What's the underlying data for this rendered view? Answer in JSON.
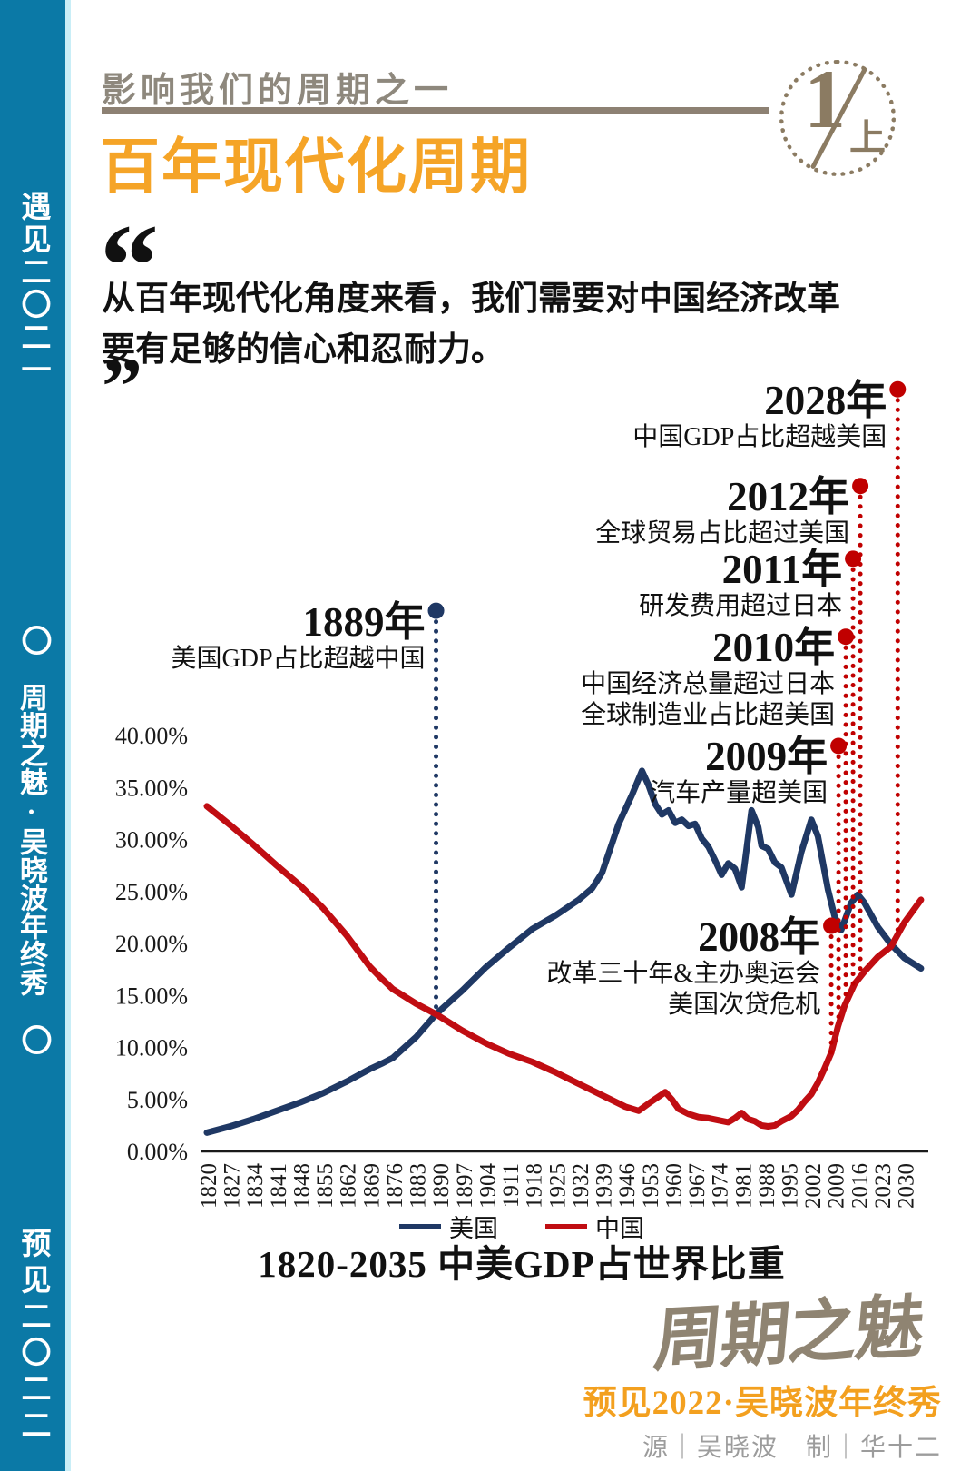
{
  "sidebar": {
    "bg_color": "#0b79a6",
    "strip_color": "#c9eef7",
    "line1": "遇见二〇二一",
    "ring1": "〇",
    "line2": "周期之魅·吴晓波年终秀",
    "ring2": "〇",
    "line3": "预见二〇二二"
  },
  "header": {
    "kicker": "影响我们的周期之一",
    "kicker_color": "#8e887d",
    "rule_color": "#8d8173",
    "title": "百年现代化周期",
    "title_color": "#f5a427",
    "badge": {
      "number": "1",
      "suffix": "上",
      "color": "#8b7b62"
    }
  },
  "quote": {
    "open_mark": "“",
    "close_mark": "”",
    "line1": "从百年现代化角度来看，我们需要对中国经济改革",
    "line2": "要有足够的信心和忍耐力。"
  },
  "chart_data": {
    "type": "line",
    "title": "1820-2035 中美GDP占世界比重",
    "xlabel": "",
    "ylabel": "",
    "xlim": [
      1820,
      2036
    ],
    "ylim": [
      0,
      40
    ],
    "grid": false,
    "legend_position": "bottom",
    "y_ticks": [
      "0.00%",
      "5.00%",
      "10.00%",
      "15.00%",
      "20.00%",
      "25.00%",
      "30.00%",
      "35.00%",
      "40.00%"
    ],
    "x_ticks": [
      1820,
      1827,
      1834,
      1841,
      1848,
      1855,
      1862,
      1869,
      1876,
      1883,
      1890,
      1897,
      1904,
      1911,
      1918,
      1925,
      1932,
      1939,
      1946,
      1953,
      1960,
      1967,
      1974,
      1981,
      1988,
      1995,
      2002,
      2009,
      2016,
      2023,
      2030
    ],
    "series": [
      {
        "name": "美国",
        "color": "#1f3864",
        "points": [
          [
            1820,
            1.8
          ],
          [
            1827,
            2.4
          ],
          [
            1834,
            3.1
          ],
          [
            1841,
            3.9
          ],
          [
            1848,
            4.7
          ],
          [
            1855,
            5.6
          ],
          [
            1862,
            6.7
          ],
          [
            1869,
            7.9
          ],
          [
            1873,
            8.5
          ],
          [
            1876,
            9.0
          ],
          [
            1883,
            11.0
          ],
          [
            1889,
            13.2
          ],
          [
            1897,
            15.5
          ],
          [
            1904,
            17.7
          ],
          [
            1911,
            19.6
          ],
          [
            1918,
            21.4
          ],
          [
            1925,
            22.7
          ],
          [
            1932,
            24.2
          ],
          [
            1936,
            25.3
          ],
          [
            1939,
            26.8
          ],
          [
            1944,
            31.5
          ],
          [
            1948,
            34.3
          ],
          [
            1951,
            36.6
          ],
          [
            1953,
            35.2
          ],
          [
            1955,
            33.4
          ],
          [
            1957,
            32.4
          ],
          [
            1959,
            32.8
          ],
          [
            1961,
            31.6
          ],
          [
            1963,
            31.9
          ],
          [
            1965,
            31.3
          ],
          [
            1967,
            31.5
          ],
          [
            1969,
            30.1
          ],
          [
            1971,
            29.3
          ],
          [
            1973,
            28.0
          ],
          [
            1975,
            26.6
          ],
          [
            1977,
            27.7
          ],
          [
            1979,
            27.2
          ],
          [
            1981,
            25.4
          ],
          [
            1984,
            32.8
          ],
          [
            1986,
            31.2
          ],
          [
            1987,
            29.4
          ],
          [
            1989,
            29.1
          ],
          [
            1991,
            27.8
          ],
          [
            1993,
            27.3
          ],
          [
            1996,
            24.7
          ],
          [
            1999,
            28.8
          ],
          [
            2002,
            31.9
          ],
          [
            2004,
            30.3
          ],
          [
            2007,
            25.2
          ],
          [
            2009,
            22.6
          ],
          [
            2011,
            21.3
          ],
          [
            2014,
            23.9
          ],
          [
            2016,
            24.7
          ],
          [
            2018,
            23.9
          ],
          [
            2022,
            21.6
          ],
          [
            2026,
            19.9
          ],
          [
            2030,
            18.6
          ],
          [
            2035,
            17.6
          ]
        ]
      },
      {
        "name": "中国",
        "color": "#c00d12",
        "points": [
          [
            1820,
            33.2
          ],
          [
            1827,
            31.4
          ],
          [
            1834,
            29.5
          ],
          [
            1841,
            27.5
          ],
          [
            1848,
            25.6
          ],
          [
            1855,
            23.4
          ],
          [
            1862,
            20.8
          ],
          [
            1869,
            17.8
          ],
          [
            1872,
            16.8
          ],
          [
            1876,
            15.6
          ],
          [
            1883,
            14.2
          ],
          [
            1889,
            13.2
          ],
          [
            1897,
            11.6
          ],
          [
            1904,
            10.4
          ],
          [
            1911,
            9.4
          ],
          [
            1918,
            8.6
          ],
          [
            1925,
            7.6
          ],
          [
            1932,
            6.5
          ],
          [
            1939,
            5.4
          ],
          [
            1946,
            4.3
          ],
          [
            1950,
            3.9
          ],
          [
            1953,
            4.6
          ],
          [
            1958,
            5.7
          ],
          [
            1960,
            5.0
          ],
          [
            1962,
            4.1
          ],
          [
            1965,
            3.6
          ],
          [
            1968,
            3.3
          ],
          [
            1971,
            3.2
          ],
          [
            1974,
            3.0
          ],
          [
            1977,
            2.8
          ],
          [
            1979,
            3.2
          ],
          [
            1981,
            3.7
          ],
          [
            1983,
            3.1
          ],
          [
            1985,
            2.9
          ],
          [
            1987,
            2.5
          ],
          [
            1989,
            2.4
          ],
          [
            1991,
            2.5
          ],
          [
            1993,
            2.9
          ],
          [
            1996,
            3.4
          ],
          [
            1998,
            4.0
          ],
          [
            2000,
            4.8
          ],
          [
            2002,
            5.5
          ],
          [
            2004,
            6.6
          ],
          [
            2006,
            8.0
          ],
          [
            2008,
            9.5
          ],
          [
            2010,
            12.0
          ],
          [
            2012,
            14.0
          ],
          [
            2015,
            16.1
          ],
          [
            2018,
            17.3
          ],
          [
            2022,
            18.7
          ],
          [
            2026,
            19.7
          ],
          [
            2030,
            22.0
          ],
          [
            2035,
            24.2
          ]
        ]
      }
    ],
    "annotations": [
      {
        "year": 1889,
        "title": "1889年",
        "lines": [
          "美国GDP占比超越中国"
        ],
        "marker_pct": 52.0,
        "color": "#1f3864",
        "target": "美国"
      },
      {
        "year": 2008,
        "title": "2008年",
        "lines": [
          "改革三十年&主办奥运会",
          "美国次贷危机"
        ],
        "marker_pct": 21.7,
        "color": "#c00000",
        "target": "中国"
      },
      {
        "year": 2009,
        "title": "2009年",
        "lines": [
          "汽车产量超美国"
        ],
        "marker_pct": 39.0,
        "color": "#c00000",
        "target": "中国"
      },
      {
        "year": 2010,
        "title": "2010年",
        "lines": [
          "中国经济总量超过日本",
          "全球制造业占比超美国"
        ],
        "marker_pct": 49.5,
        "color": "#c00000",
        "target": "中国"
      },
      {
        "year": 2011,
        "title": "2011年",
        "lines": [
          "研发费用超过日本"
        ],
        "marker_pct": 57.0,
        "color": "#c00000",
        "target": "中国"
      },
      {
        "year": 2012,
        "title": "2012年",
        "lines": [
          "全球贸易占比超过美国"
        ],
        "marker_pct": 64.0,
        "color": "#c00000",
        "target": "中国"
      },
      {
        "year": 2028,
        "title": "2028年",
        "lines": [
          "中国GDP占比超越美国"
        ],
        "marker_pct": 73.3,
        "color": "#c00000",
        "target": "中国"
      }
    ]
  },
  "footer": {
    "logo_text": "周期之魅",
    "logo_color": "#8f8472",
    "line1": "预见2022·吴晓波年终秀",
    "line1_color": "#f3a01f",
    "line2": "源｜吴晓波　制｜华十二",
    "line2_color": "#9c9c9c"
  }
}
